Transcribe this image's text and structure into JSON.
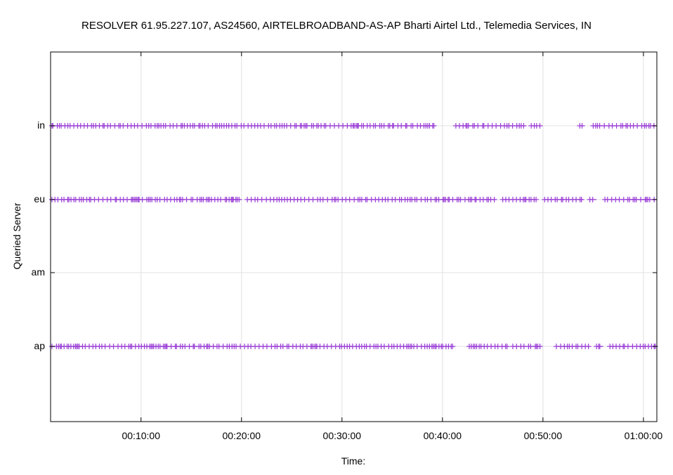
{
  "chart_data": {
    "type": "scatter",
    "title": "RESOLVER 61.95.227.107, AS24560, AIRTELBROADBAND-AS-AP Bharti Airtel Ltd., Telemedia Services, IN",
    "xlabel": "Time:",
    "ylabel": "Queried Server",
    "x_unit": "seconds",
    "xlim": [
      60,
      3680
    ],
    "x_ticks": [
      {
        "value": 600,
        "label": "00:10:00"
      },
      {
        "value": 1200,
        "label": "00:20:00"
      },
      {
        "value": 1800,
        "label": "00:30:00"
      },
      {
        "value": 2400,
        "label": "00:40:00"
      },
      {
        "value": 3000,
        "label": "00:50:00"
      },
      {
        "value": 3600,
        "label": "01:00:00"
      }
    ],
    "y_categories": [
      "ap",
      "am",
      "eu",
      "in"
    ],
    "grid": true,
    "marker": "+",
    "color": "#9a3fd6",
    "series": [
      {
        "category": "in",
        "ranges": [
          [
            68,
            2350
          ],
          [
            2480,
            2620
          ],
          [
            2640,
            2700
          ],
          [
            2720,
            2900
          ],
          [
            2930,
            2990
          ],
          [
            3220,
            3250
          ],
          [
            3300,
            3680
          ]
        ]
      },
      {
        "category": "eu",
        "ranges": [
          [
            68,
            1200
          ],
          [
            1235,
            2720
          ],
          [
            2760,
            2960
          ],
          [
            3010,
            3240
          ],
          [
            3280,
            3320
          ],
          [
            3370,
            3680
          ]
        ]
      },
      {
        "category": "am",
        "ranges": []
      },
      {
        "category": "ap",
        "ranges": [
          [
            68,
            2470
          ],
          [
            2560,
            2790
          ],
          [
            2820,
            2990
          ],
          [
            3080,
            3280
          ],
          [
            3320,
            3360
          ],
          [
            3400,
            3680
          ]
        ]
      }
    ]
  }
}
